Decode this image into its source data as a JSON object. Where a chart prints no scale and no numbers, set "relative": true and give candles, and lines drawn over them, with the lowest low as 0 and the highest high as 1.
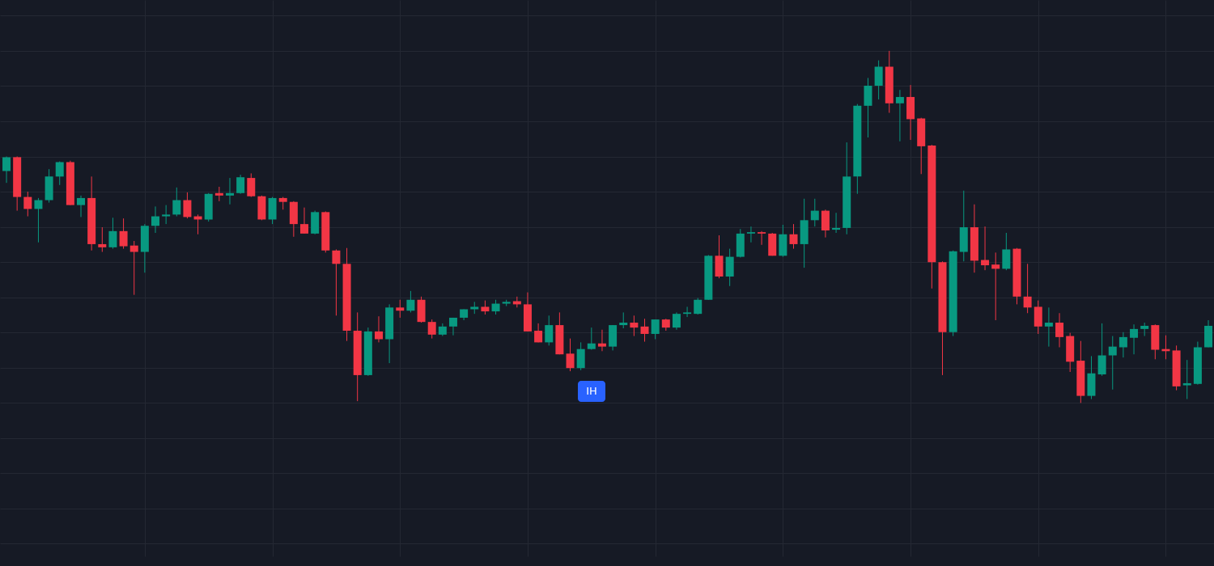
{
  "chart_data": {
    "type": "candlestick",
    "relative": true,
    "grid": true,
    "categories": [
      null,
      null,
      null,
      null,
      null,
      null,
      null,
      null,
      null,
      null,
      null,
      null,
      null,
      null,
      null,
      null,
      null,
      null,
      null,
      null,
      null,
      null,
      null,
      null,
      null,
      null,
      null,
      null,
      null,
      null,
      null,
      null,
      null,
      null,
      null,
      null,
      null,
      null,
      null,
      null,
      null,
      null,
      null,
      null,
      null,
      null,
      null,
      null,
      null,
      null,
      null,
      null,
      null,
      null,
      null,
      null,
      null,
      null,
      null,
      null,
      null,
      null,
      null,
      null,
      null,
      null,
      null,
      null,
      null,
      null,
      null,
      null,
      null,
      null,
      null,
      null,
      null,
      null,
      null,
      null,
      null,
      null,
      null,
      null,
      null,
      null,
      null,
      null,
      null,
      null,
      null,
      null,
      null,
      null,
      null,
      null,
      null,
      null,
      null,
      null,
      null,
      null,
      null,
      null,
      null,
      null,
      null,
      null,
      null,
      null,
      null,
      null,
      null,
      null
    ],
    "ohlc": [
      [
        0.659,
        0.7,
        0.625,
        0.698
      ],
      [
        0.698,
        0.7,
        0.546,
        0.585
      ],
      [
        0.585,
        0.6,
        0.53,
        0.551
      ],
      [
        0.551,
        0.582,
        0.456,
        0.576
      ],
      [
        0.576,
        0.664,
        0.569,
        0.643
      ],
      [
        0.643,
        0.686,
        0.619,
        0.684
      ],
      [
        0.684,
        0.688,
        0.562,
        0.562
      ],
      [
        0.562,
        0.589,
        0.528,
        0.582
      ],
      [
        0.582,
        0.643,
        0.433,
        0.451
      ],
      [
        0.451,
        0.499,
        0.429,
        0.442
      ],
      [
        0.442,
        0.526,
        0.438,
        0.488
      ],
      [
        0.488,
        0.524,
        0.438,
        0.445
      ],
      [
        0.447,
        0.46,
        0.307,
        0.429
      ],
      [
        0.429,
        0.508,
        0.37,
        0.503
      ],
      [
        0.503,
        0.558,
        0.483,
        0.53
      ],
      [
        0.53,
        0.562,
        0.508,
        0.535
      ],
      [
        0.535,
        0.612,
        0.53,
        0.576
      ],
      [
        0.576,
        0.598,
        0.524,
        0.528
      ],
      [
        0.53,
        0.535,
        0.479,
        0.521
      ],
      [
        0.521,
        0.596,
        0.515,
        0.594
      ],
      [
        0.596,
        0.614,
        0.573,
        0.589
      ],
      [
        0.589,
        0.639,
        0.564,
        0.596
      ],
      [
        0.596,
        0.648,
        0.594,
        0.641
      ],
      [
        0.639,
        0.652,
        0.585,
        0.587
      ],
      [
        0.587,
        0.589,
        0.519,
        0.521
      ],
      [
        0.521,
        0.585,
        0.508,
        0.582
      ],
      [
        0.582,
        0.585,
        0.549,
        0.571
      ],
      [
        0.571,
        0.573,
        0.472,
        0.508
      ],
      [
        0.508,
        0.555,
        0.481,
        0.481
      ],
      [
        0.481,
        0.546,
        0.479,
        0.542
      ],
      [
        0.542,
        0.544,
        0.427,
        0.433
      ],
      [
        0.433,
        0.436,
        0.248,
        0.395
      ],
      [
        0.395,
        0.44,
        0.176,
        0.205
      ],
      [
        0.205,
        0.257,
        0.005,
        0.079
      ],
      [
        0.079,
        0.214,
        0.077,
        0.203
      ],
      [
        0.203,
        0.246,
        0.172,
        0.181
      ],
      [
        0.181,
        0.28,
        0.113,
        0.271
      ],
      [
        0.271,
        0.293,
        0.242,
        0.262
      ],
      [
        0.262,
        0.318,
        0.257,
        0.293
      ],
      [
        0.293,
        0.302,
        0.228,
        0.23
      ],
      [
        0.23,
        0.237,
        0.183,
        0.194
      ],
      [
        0.194,
        0.226,
        0.19,
        0.217
      ],
      [
        0.217,
        0.242,
        0.192,
        0.242
      ],
      [
        0.242,
        0.266,
        0.235,
        0.266
      ],
      [
        0.266,
        0.287,
        0.253,
        0.273
      ],
      [
        0.273,
        0.291,
        0.251,
        0.26
      ],
      [
        0.26,
        0.293,
        0.251,
        0.282
      ],
      [
        0.282,
        0.293,
        0.275,
        0.287
      ],
      [
        0.289,
        0.302,
        0.271,
        0.28
      ],
      [
        0.28,
        0.314,
        0.203,
        0.203
      ],
      [
        0.205,
        0.226,
        0.172,
        0.172
      ],
      [
        0.172,
        0.248,
        0.163,
        0.221
      ],
      [
        0.221,
        0.257,
        0.138,
        0.138
      ],
      [
        0.14,
        0.183,
        0.09,
        0.099
      ],
      [
        0.099,
        0.172,
        0.093,
        0.153
      ],
      [
        0.153,
        0.214,
        0.151,
        0.169
      ],
      [
        0.169,
        0.208,
        0.147,
        0.16
      ],
      [
        0.16,
        0.221,
        0.149,
        0.221
      ],
      [
        0.221,
        0.257,
        0.212,
        0.228
      ],
      [
        0.228,
        0.248,
        0.19,
        0.214
      ],
      [
        0.217,
        0.239,
        0.174,
        0.196
      ],
      [
        0.196,
        0.237,
        0.181,
        0.237
      ],
      [
        0.237,
        0.239,
        0.205,
        0.214
      ],
      [
        0.214,
        0.257,
        0.208,
        0.253
      ],
      [
        0.253,
        0.273,
        0.244,
        0.257
      ],
      [
        0.253,
        0.298,
        0.251,
        0.293
      ],
      [
        0.293,
        0.42,
        0.293,
        0.418
      ],
      [
        0.418,
        0.476,
        0.354,
        0.359
      ],
      [
        0.359,
        0.438,
        0.332,
        0.415
      ],
      [
        0.415,
        0.494,
        0.413,
        0.481
      ],
      [
        0.481,
        0.501,
        0.456,
        0.485
      ],
      [
        0.485,
        0.488,
        0.449,
        0.481
      ],
      [
        0.481,
        0.483,
        0.418,
        0.418
      ],
      [
        0.418,
        0.506,
        0.415,
        0.479
      ],
      [
        0.479,
        0.508,
        0.438,
        0.451
      ],
      [
        0.451,
        0.58,
        0.384,
        0.519
      ],
      [
        0.519,
        0.58,
        0.501,
        0.546
      ],
      [
        0.546,
        0.549,
        0.47,
        0.49
      ],
      [
        0.492,
        0.54,
        0.483,
        0.497
      ],
      [
        0.497,
        0.74,
        0.479,
        0.643
      ],
      [
        0.643,
        0.849,
        0.594,
        0.844
      ],
      [
        0.844,
        0.923,
        0.754,
        0.901
      ],
      [
        0.901,
        0.973,
        0.862,
        0.955
      ],
      [
        0.955,
        1,
        0.824,
        0.851
      ],
      [
        0.851,
        0.889,
        0.743,
        0.869
      ],
      [
        0.869,
        0.903,
        0.747,
        0.806
      ],
      [
        0.808,
        0.81,
        0.65,
        0.729
      ],
      [
        0.731,
        0.733,
        0.325,
        0.4
      ],
      [
        0.4,
        0.402,
        0.079,
        0.201
      ],
      [
        0.201,
        0.433,
        0.19,
        0.431
      ],
      [
        0.429,
        0.603,
        0.402,
        0.499
      ],
      [
        0.499,
        0.564,
        0.37,
        0.404
      ],
      [
        0.406,
        0.501,
        0.377,
        0.391
      ],
      [
        0.393,
        0.427,
        0.235,
        0.381
      ],
      [
        0.381,
        0.483,
        0.377,
        0.436
      ],
      [
        0.438,
        0.44,
        0.28,
        0.302
      ],
      [
        0.302,
        0.395,
        0.255,
        0.271
      ],
      [
        0.273,
        0.291,
        0.196,
        0.217
      ],
      [
        0.217,
        0.271,
        0.16,
        0.228
      ],
      [
        0.228,
        0.255,
        0.158,
        0.187
      ],
      [
        0.19,
        0.199,
        0.088,
        0.117
      ],
      [
        0.12,
        0.176,
        0,
        0.02
      ],
      [
        0.02,
        0.133,
        0.011,
        0.084
      ],
      [
        0.081,
        0.226,
        0.077,
        0.135
      ],
      [
        0.135,
        0.19,
        0.038,
        0.16
      ],
      [
        0.158,
        0.201,
        0.129,
        0.187
      ],
      [
        0.185,
        0.223,
        0.138,
        0.21
      ],
      [
        0.21,
        0.228,
        0.19,
        0.219
      ],
      [
        0.221,
        0.223,
        0.124,
        0.151
      ],
      [
        0.153,
        0.192,
        0.124,
        0.147
      ],
      [
        0.149,
        0.163,
        0.036,
        0.047
      ],
      [
        0.05,
        0.122,
        0.011,
        0.056
      ],
      [
        0.054,
        0.174,
        0.052,
        0.158
      ],
      [
        0.158,
        0.235,
        0.158,
        0.219
      ]
    ],
    "colors": [
      "#089981",
      "#f23645",
      "#f23645",
      "#089981",
      "#089981",
      "#089981",
      "#f23645",
      "#089981",
      "#f23645",
      "#f23645",
      "#089981",
      "#f23645",
      "#f23645",
      "#089981",
      "#089981",
      "#089981",
      "#089981",
      "#f23645",
      "#f23645",
      "#089981",
      "#f23645",
      "#089981",
      "#089981",
      "#f23645",
      "#f23645",
      "#089981",
      "#f23645",
      "#f23645",
      "#f23645",
      "#089981",
      "#f23645",
      "#f23645",
      "#f23645",
      "#f23645",
      "#089981",
      "#f23645",
      "#089981",
      "#f23645",
      "#089981",
      "#f23645",
      "#f23645",
      "#089981",
      "#089981",
      "#089981",
      "#089981",
      "#f23645",
      "#089981",
      "#089981",
      "#f23645",
      "#f23645",
      "#f23645",
      "#089981",
      "#f23645",
      "#f23645",
      "#089981",
      "#089981",
      "#f23645",
      "#089981",
      "#089981",
      "#f23645",
      "#f23645",
      "#089981",
      "#f23645",
      "#089981",
      "#089981",
      "#089981",
      "#089981",
      "#f23645",
      "#089981",
      "#089981",
      "#089981",
      "#f23645",
      "#f23645",
      "#089981",
      "#f23645",
      "#089981",
      "#089981",
      "#f23645",
      "#089981",
      "#089981",
      "#089981",
      "#089981",
      "#089981",
      "#f23645",
      "#089981",
      "#f23645",
      "#f23645",
      "#f23645",
      "#f23645",
      "#089981",
      "#089981",
      "#f23645",
      "#f23645",
      "#f23645",
      "#089981",
      "#f23645",
      "#f23645",
      "#f23645",
      "#089981",
      "#f23645",
      "#f23645",
      "#f23645",
      "#089981",
      "#089981",
      "#089981",
      "#089981",
      "#089981",
      "#089981",
      "#f23645",
      "#f23645",
      "#f23645",
      "#089981",
      "#089981",
      "#089981"
    ],
    "annotations": [
      "IH"
    ]
  }
}
